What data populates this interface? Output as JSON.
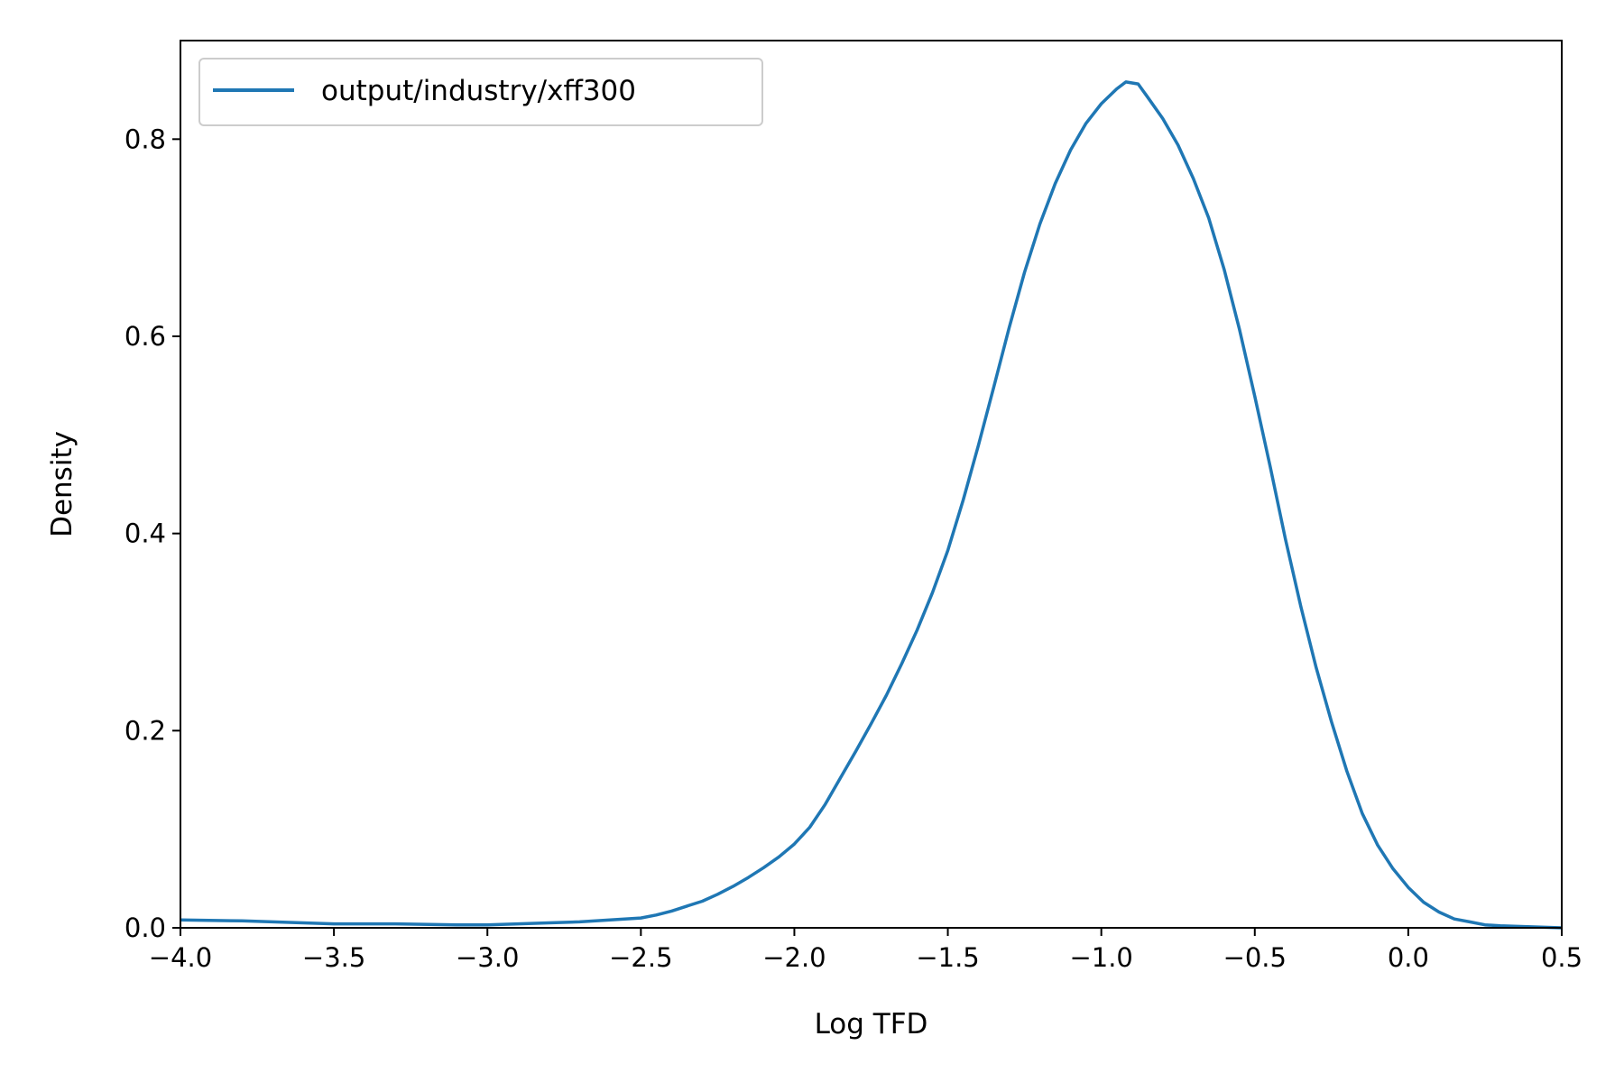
{
  "chart_data": {
    "type": "line",
    "title": "",
    "xlabel": "Log TFD",
    "ylabel": "Density",
    "xlim": [
      -4.0,
      0.5
    ],
    "ylim": [
      0.0,
      0.9
    ],
    "x_ticks": [
      "−4.0",
      "−3.5",
      "−3.0",
      "−2.5",
      "−2.0",
      "−1.5",
      "−1.0",
      "−0.5",
      "0.0",
      "0.5"
    ],
    "x_tick_values": [
      -4.0,
      -3.5,
      -3.0,
      -2.5,
      -2.0,
      -1.5,
      -1.0,
      -0.5,
      0.0,
      0.5
    ],
    "y_ticks": [
      "0.0",
      "0.2",
      "0.4",
      "0.6",
      "0.8"
    ],
    "y_tick_values": [
      0.0,
      0.2,
      0.4,
      0.6,
      0.8
    ],
    "grid": false,
    "legend_position": "top-left",
    "series": [
      {
        "name": "output/industry/xff300",
        "color": "#1f77b4",
        "x": [
          -4.0,
          -3.8,
          -3.6,
          -3.5,
          -3.3,
          -3.1,
          -3.0,
          -2.9,
          -2.8,
          -2.7,
          -2.6,
          -2.5,
          -2.45,
          -2.4,
          -2.35,
          -2.3,
          -2.25,
          -2.2,
          -2.15,
          -2.1,
          -2.05,
          -2.0,
          -1.95,
          -1.9,
          -1.85,
          -1.8,
          -1.75,
          -1.7,
          -1.65,
          -1.6,
          -1.55,
          -1.5,
          -1.45,
          -1.4,
          -1.35,
          -1.3,
          -1.25,
          -1.2,
          -1.15,
          -1.1,
          -1.05,
          -1.0,
          -0.95,
          -0.92,
          -0.88,
          -0.85,
          -0.8,
          -0.75,
          -0.7,
          -0.65,
          -0.6,
          -0.55,
          -0.5,
          -0.45,
          -0.4,
          -0.35,
          -0.3,
          -0.25,
          -0.2,
          -0.15,
          -0.1,
          -0.05,
          0.0,
          0.05,
          0.1,
          0.15,
          0.2,
          0.25,
          0.3,
          0.4,
          0.5
        ],
        "y": [
          0.008,
          0.007,
          0.005,
          0.004,
          0.004,
          0.003,
          0.003,
          0.004,
          0.005,
          0.006,
          0.008,
          0.01,
          0.013,
          0.017,
          0.022,
          0.027,
          0.034,
          0.042,
          0.051,
          0.061,
          0.072,
          0.085,
          0.102,
          0.125,
          0.152,
          0.179,
          0.207,
          0.236,
          0.268,
          0.302,
          0.34,
          0.383,
          0.434,
          0.49,
          0.549,
          0.609,
          0.665,
          0.714,
          0.755,
          0.789,
          0.816,
          0.836,
          0.851,
          0.858,
          0.856,
          0.843,
          0.821,
          0.794,
          0.76,
          0.72,
          0.668,
          0.607,
          0.539,
          0.468,
          0.394,
          0.326,
          0.264,
          0.209,
          0.159,
          0.116,
          0.084,
          0.06,
          0.041,
          0.026,
          0.016,
          0.009,
          0.006,
          0.003,
          0.002,
          0.001,
          0.0
        ]
      }
    ]
  }
}
